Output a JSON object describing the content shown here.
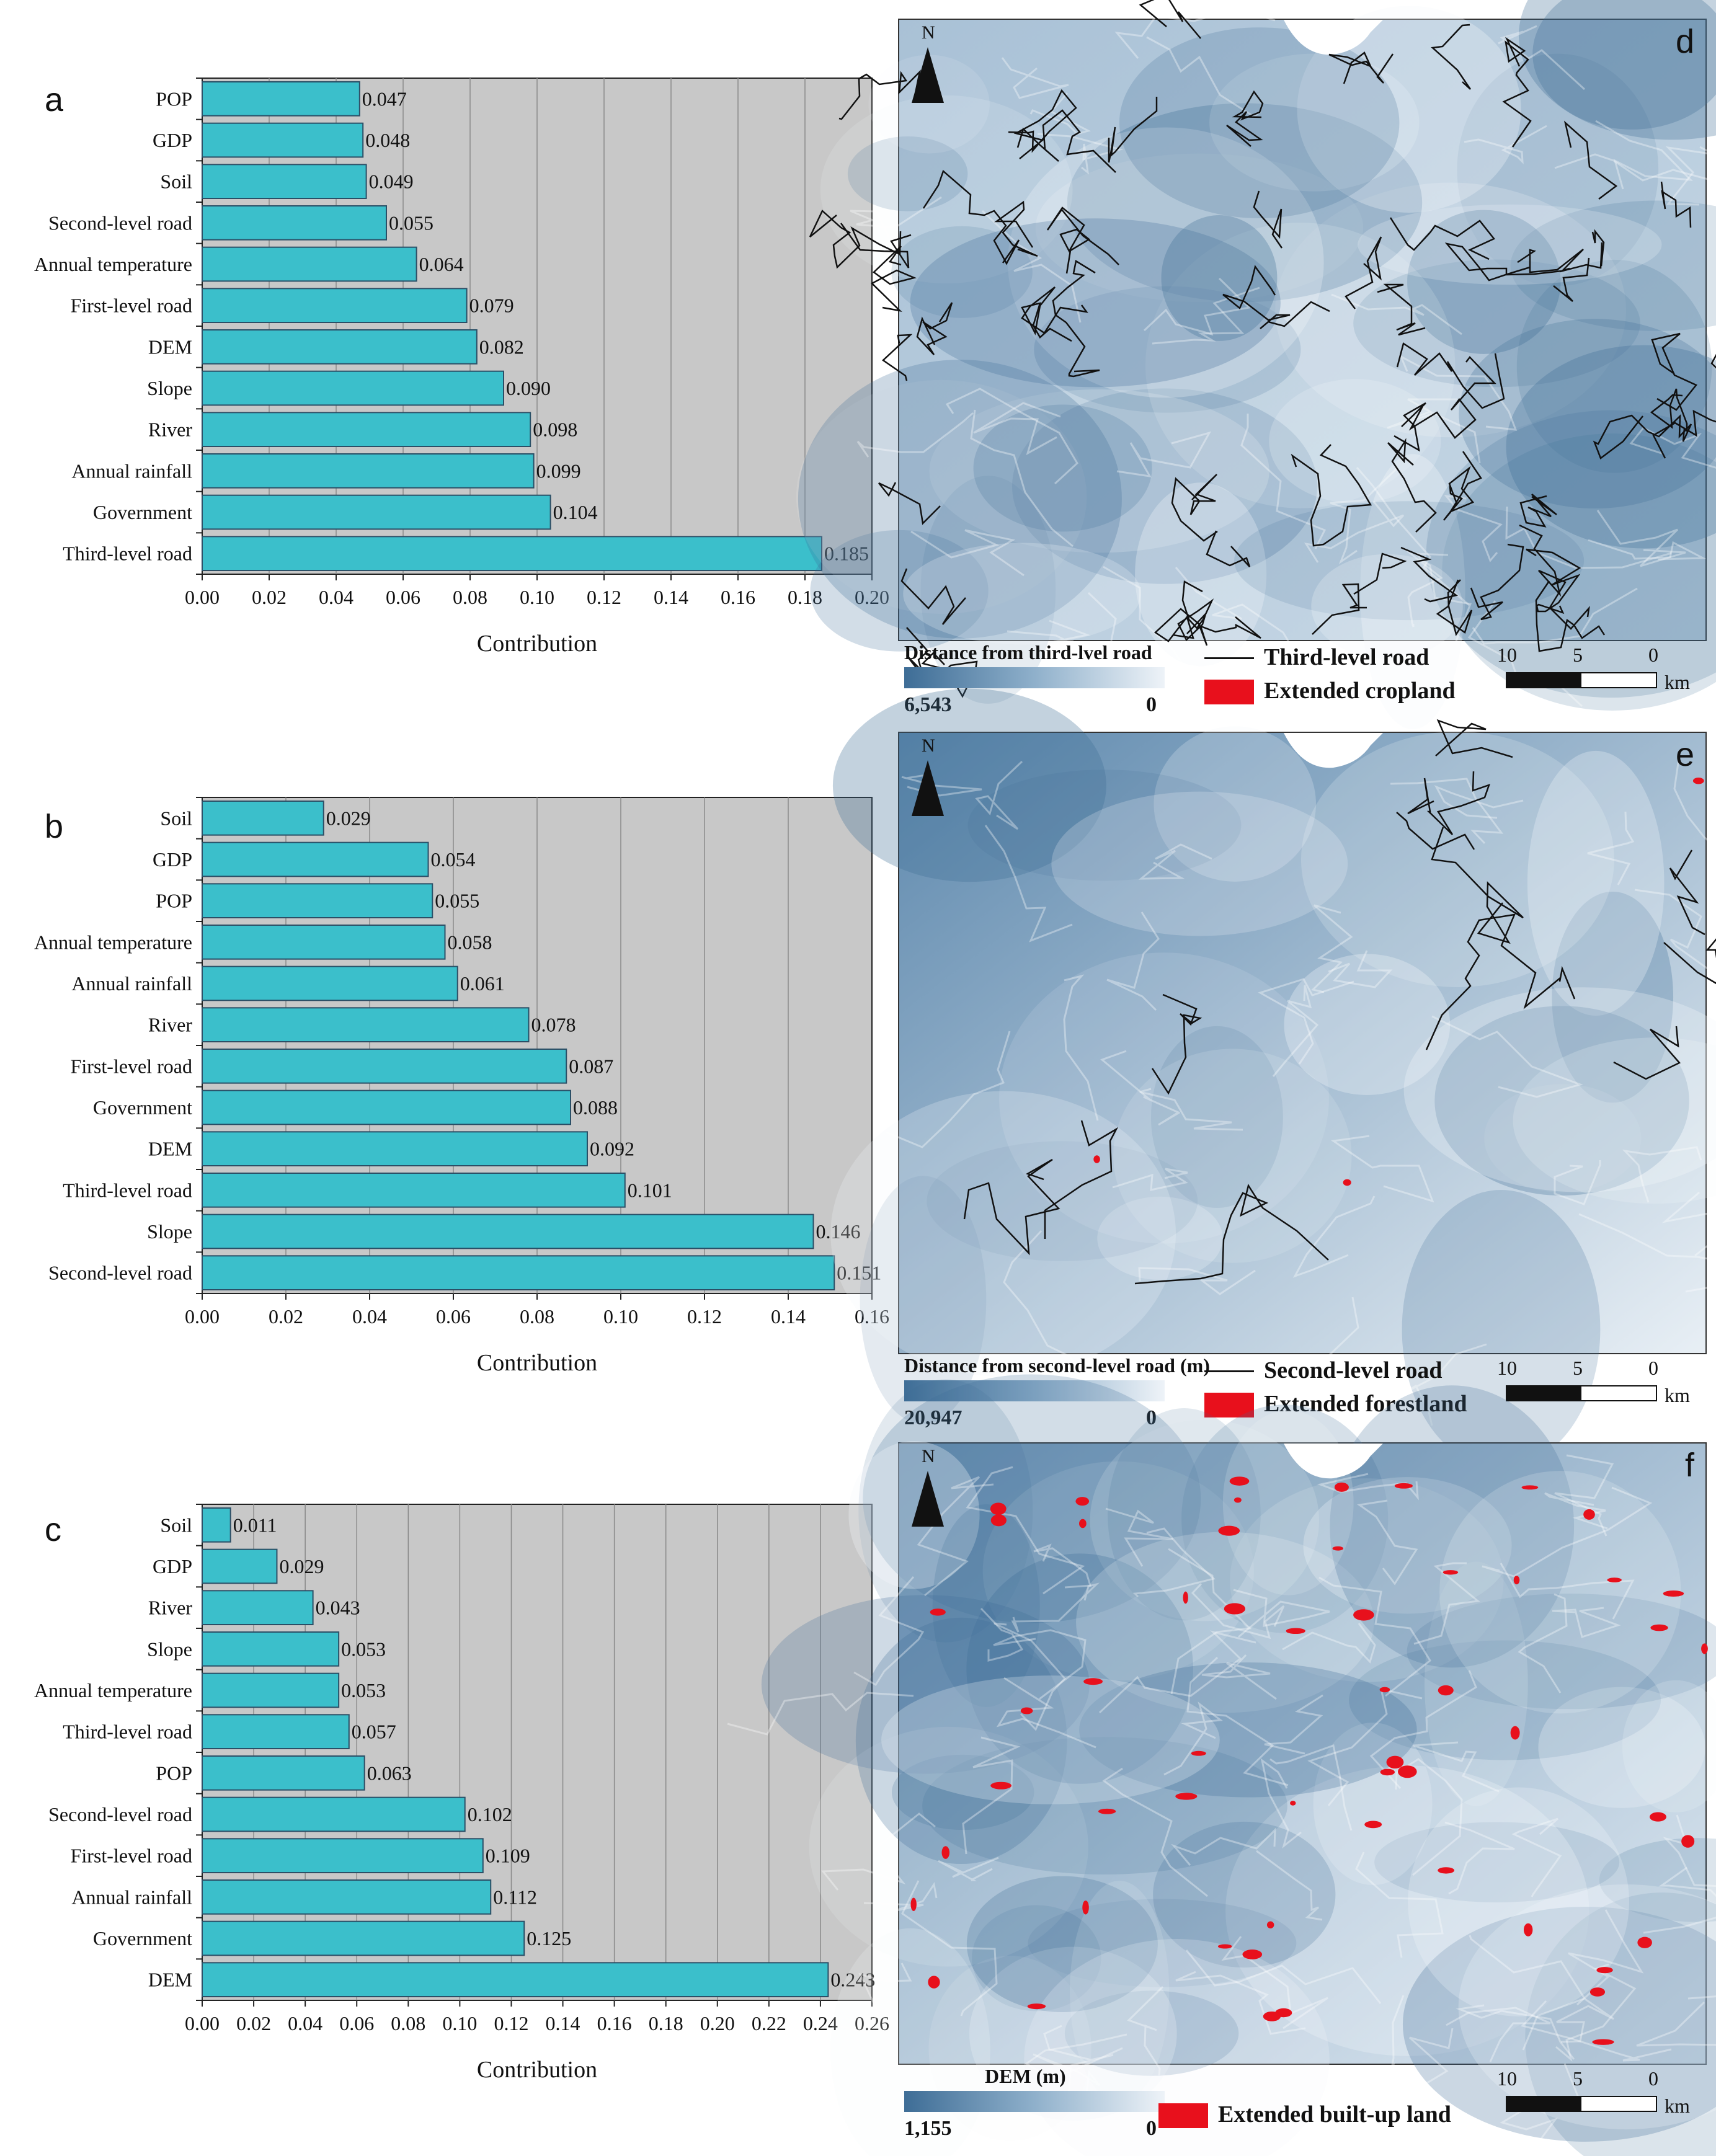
{
  "chart_data": [
    {
      "type": "bar",
      "orientation": "horizontal",
      "panel_label": "a",
      "categories": [
        "POP",
        "GDP",
        "Soil",
        "Second-level road",
        "Annual temperature",
        "First-level road",
        "DEM",
        "Slope",
        "River",
        "Annual rainfall",
        "Government",
        "Third-level road"
      ],
      "values": [
        0.047,
        0.048,
        0.049,
        0.055,
        0.064,
        0.079,
        0.082,
        0.09,
        0.098,
        0.099,
        0.104,
        0.185
      ],
      "value_labels": [
        "0.047",
        "0.048",
        "0.049",
        "0.055",
        "0.064",
        "0.079",
        "0.082",
        "0.090",
        "0.098",
        "0.099",
        "0.104",
        "0.185"
      ],
      "xticks": [
        "0.00",
        "0.02",
        "0.04",
        "0.06",
        "0.08",
        "0.10",
        "0.12",
        "0.14",
        "0.16",
        "0.18",
        "0.20"
      ],
      "xlim": [
        0,
        0.2
      ],
      "xlabel": "Contribution",
      "ylabel": "",
      "grid": true,
      "bar_color": "#3bbfcb",
      "plot_bg": "#c8c8c8"
    },
    {
      "type": "bar",
      "orientation": "horizontal",
      "panel_label": "b",
      "categories": [
        "Soil",
        "GDP",
        "POP",
        "Annual temperature",
        "Annual rainfall",
        "River",
        "First-level road",
        "Government",
        "DEM",
        "Third-level road",
        "Slope",
        "Second-level road"
      ],
      "values": [
        0.029,
        0.054,
        0.055,
        0.058,
        0.061,
        0.078,
        0.087,
        0.088,
        0.092,
        0.101,
        0.146,
        0.151
      ],
      "value_labels": [
        "0.029",
        "0.054",
        "0.055",
        "0.058",
        "0.061",
        "0.078",
        "0.087",
        "0.088",
        "0.092",
        "0.101",
        "0.146",
        "0.151"
      ],
      "xticks": [
        "0.00",
        "0.02",
        "0.04",
        "0.06",
        "0.08",
        "0.10",
        "0.12",
        "0.14",
        "0.16"
      ],
      "xlim": [
        0,
        0.16
      ],
      "xlabel": "Contribution",
      "ylabel": "",
      "grid": true,
      "bar_color": "#3bbfcb",
      "plot_bg": "#c8c8c8"
    },
    {
      "type": "bar",
      "orientation": "horizontal",
      "panel_label": "c",
      "categories": [
        "Soil",
        "GDP",
        "River",
        "Slope",
        "Annual temperature",
        "Third-level road",
        "POP",
        "Second-level road",
        "First-level road",
        "Annual rainfall",
        "Government",
        "DEM"
      ],
      "values": [
        0.011,
        0.029,
        0.043,
        0.053,
        0.053,
        0.057,
        0.063,
        0.102,
        0.109,
        0.112,
        0.125,
        0.243
      ],
      "value_labels": [
        "0.011",
        "0.029",
        "0.043",
        "0.053",
        "0.053",
        "0.057",
        "0.063",
        "0.102",
        "0.109",
        "0.112",
        "0.125",
        "0.243"
      ],
      "xticks": [
        "0.00",
        "0.02",
        "0.04",
        "0.06",
        "0.08",
        "0.10",
        "0.12",
        "0.14",
        "0.16",
        "0.18",
        "0.20",
        "0.22",
        "0.24",
        "0.26"
      ],
      "xlim": [
        0,
        0.26
      ],
      "xlabel": "Contribution",
      "ylabel": "",
      "grid": true,
      "bar_color": "#3bbfcb",
      "plot_bg": "#c8c8c8"
    }
  ],
  "maps": [
    {
      "panel_label": "d",
      "north": "N",
      "legend_title": "Distance from third-lvel road",
      "gradient_max": "6,543",
      "gradient_min": "0",
      "line_label": "Third-level road",
      "swatch_label": "Extended cropland",
      "scale_ticks": [
        "10",
        "5",
        "0"
      ],
      "scale_unit": "km"
    },
    {
      "panel_label": "e",
      "north": "N",
      "legend_title": "Distance from second-level road (m)",
      "gradient_max": "20,947",
      "gradient_min": "0",
      "line_label": "Second-level road",
      "swatch_label": "Extended forestland",
      "scale_ticks": [
        "10",
        "5",
        "0"
      ],
      "scale_unit": "km"
    },
    {
      "panel_label": "f",
      "north": "N",
      "legend_title": "DEM (m)",
      "gradient_max": "1,155",
      "gradient_min": "0",
      "swatch_label": "Extended built-up land",
      "scale_ticks": [
        "10",
        "5",
        "0"
      ],
      "scale_unit": "km"
    }
  ],
  "colors": {
    "map_dark": "#3e6d96",
    "map_light": "#e8eff6",
    "road": "#111111",
    "extended": "#e8101c"
  }
}
